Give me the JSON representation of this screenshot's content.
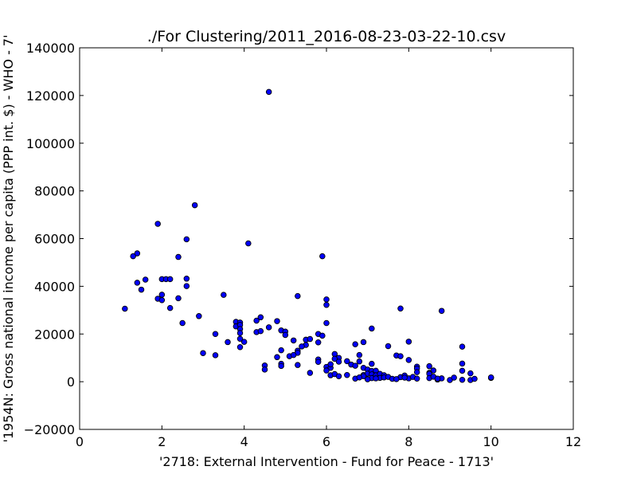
{
  "chart_data": {
    "type": "scatter",
    "title": "./For Clustering/2011_2016-08-23-03-22-10.csv",
    "xlabel": "'2718: External Intervention - Fund for Peace - 1713'",
    "ylabel": "'1954N: Gross national income per capita (PPP int. $) - WHO - 7'",
    "xlim": [
      0,
      12
    ],
    "ylim": [
      -20000,
      140000
    ],
    "xticks": [
      "0",
      "2",
      "4",
      "6",
      "8",
      "10",
      "12"
    ],
    "yticks": [
      "−20000",
      "0",
      "20000",
      "40000",
      "60000",
      "80000",
      "100000",
      "120000",
      "140000"
    ],
    "grid": false,
    "marker_color": "#0000ff",
    "marker_edge": "#000000",
    "points": [
      [
        4.6,
        121500
      ],
      [
        2.8,
        74000
      ],
      [
        1.9,
        66200
      ],
      [
        2.6,
        59700
      ],
      [
        4.1,
        58000
      ],
      [
        1.4,
        53800
      ],
      [
        1.3,
        52600
      ],
      [
        2.4,
        52300
      ],
      [
        5.9,
        52600
      ],
      [
        2.0,
        43000
      ],
      [
        2.1,
        43000
      ],
      [
        2.2,
        43000
      ],
      [
        1.6,
        42800
      ],
      [
        2.6,
        43200
      ],
      [
        1.4,
        41500
      ],
      [
        2.6,
        40100
      ],
      [
        1.5,
        38600
      ],
      [
        2.0,
        36500
      ],
      [
        2.4,
        35000
      ],
      [
        1.9,
        34800
      ],
      [
        2.0,
        34200
      ],
      [
        3.5,
        36400
      ],
      [
        5.3,
        35900
      ],
      [
        6.0,
        34500
      ],
      [
        6.0,
        32200
      ],
      [
        1.1,
        30600
      ],
      [
        2.2,
        30900
      ],
      [
        7.8,
        30700
      ],
      [
        8.8,
        29700
      ],
      [
        2.9,
        27500
      ],
      [
        4.4,
        27000
      ],
      [
        4.3,
        25600
      ],
      [
        4.8,
        25400
      ],
      [
        2.5,
        24600
      ],
      [
        3.8,
        25100
      ],
      [
        3.9,
        24800
      ],
      [
        3.8,
        23200
      ],
      [
        3.9,
        23800
      ],
      [
        6.0,
        24600
      ],
      [
        4.6,
        22800
      ],
      [
        3.9,
        22100
      ],
      [
        4.9,
        21500
      ],
      [
        5.0,
        21000
      ],
      [
        4.3,
        20800
      ],
      [
        4.4,
        21200
      ],
      [
        3.9,
        20400
      ],
      [
        5.0,
        19600
      ],
      [
        3.3,
        20000
      ],
      [
        5.8,
        20000
      ],
      [
        5.9,
        19300
      ],
      [
        7.1,
        22300
      ],
      [
        3.9,
        18000
      ],
      [
        4.0,
        16700
      ],
      [
        3.6,
        16600
      ],
      [
        5.2,
        17300
      ],
      [
        5.5,
        17600
      ],
      [
        5.6,
        17900
      ],
      [
        5.8,
        16500
      ],
      [
        6.9,
        16600
      ],
      [
        8.0,
        16800
      ],
      [
        5.5,
        15400
      ],
      [
        5.4,
        14800
      ],
      [
        3.9,
        14500
      ],
      [
        6.7,
        15700
      ],
      [
        7.5,
        14900
      ],
      [
        9.3,
        14700
      ],
      [
        5.3,
        13000
      ],
      [
        4.9,
        13200
      ],
      [
        5.3,
        12100
      ],
      [
        3.0,
        12000
      ],
      [
        3.3,
        11100
      ],
      [
        5.1,
        10700
      ],
      [
        5.2,
        11200
      ],
      [
        4.8,
        10300
      ],
      [
        6.2,
        11600
      ],
      [
        6.3,
        10000
      ],
      [
        6.8,
        11200
      ],
      [
        7.7,
        11000
      ],
      [
        7.8,
        10700
      ],
      [
        5.8,
        9300
      ],
      [
        5.8,
        8300
      ],
      [
        6.2,
        9600
      ],
      [
        6.3,
        8400
      ],
      [
        6.5,
        8600
      ],
      [
        6.8,
        8500
      ],
      [
        8.0,
        9100
      ],
      [
        7.1,
        7500
      ],
      [
        4.9,
        7500
      ],
      [
        4.9,
        6600
      ],
      [
        5.3,
        7000
      ],
      [
        4.5,
        6800
      ],
      [
        4.5,
        5100
      ],
      [
        6.0,
        6200
      ],
      [
        6.1,
        5800
      ],
      [
        6.1,
        7300
      ],
      [
        6.6,
        7200
      ],
      [
        6.7,
        6700
      ],
      [
        6.9,
        5800
      ],
      [
        7.0,
        5100
      ],
      [
        8.2,
        6300
      ],
      [
        8.2,
        5500
      ],
      [
        8.5,
        6500
      ],
      [
        8.6,
        4700
      ],
      [
        9.3,
        7600
      ],
      [
        6.0,
        4700
      ],
      [
        5.6,
        3700
      ],
      [
        6.1,
        2700
      ],
      [
        6.2,
        3200
      ],
      [
        6.3,
        2300
      ],
      [
        6.5,
        2800
      ],
      [
        6.9,
        2800
      ],
      [
        7.0,
        3400
      ],
      [
        7.1,
        4500
      ],
      [
        7.2,
        4600
      ],
      [
        7.1,
        3100
      ],
      [
        7.2,
        2700
      ],
      [
        7.3,
        3300
      ],
      [
        7.4,
        2700
      ],
      [
        8.2,
        4000
      ],
      [
        8.5,
        3700
      ],
      [
        8.5,
        3300
      ],
      [
        9.3,
        4600
      ],
      [
        9.5,
        3500
      ],
      [
        6.7,
        1300
      ],
      [
        6.9,
        2300
      ],
      [
        7.1,
        1500
      ],
      [
        7.0,
        1000
      ],
      [
        7.3,
        1600
      ],
      [
        7.4,
        1800
      ],
      [
        7.5,
        2000
      ],
      [
        7.6,
        1200
      ],
      [
        7.8,
        1900
      ],
      [
        7.9,
        2600
      ],
      [
        8.0,
        1400
      ],
      [
        8.1,
        2000
      ],
      [
        8.2,
        1300
      ],
      [
        8.5,
        1500
      ],
      [
        8.6,
        2100
      ],
      [
        8.7,
        900
      ],
      [
        8.8,
        1400
      ],
      [
        9.0,
        700
      ],
      [
        9.1,
        1700
      ],
      [
        9.3,
        800
      ],
      [
        9.5,
        700
      ],
      [
        9.6,
        1200
      ],
      [
        10.0,
        1600
      ],
      [
        10.0,
        1800
      ],
      [
        8.7,
        1300
      ],
      [
        7.7,
        1100
      ],
      [
        7.9,
        1700
      ],
      [
        6.8,
        1800
      ],
      [
        7.2,
        1400
      ]
    ]
  }
}
